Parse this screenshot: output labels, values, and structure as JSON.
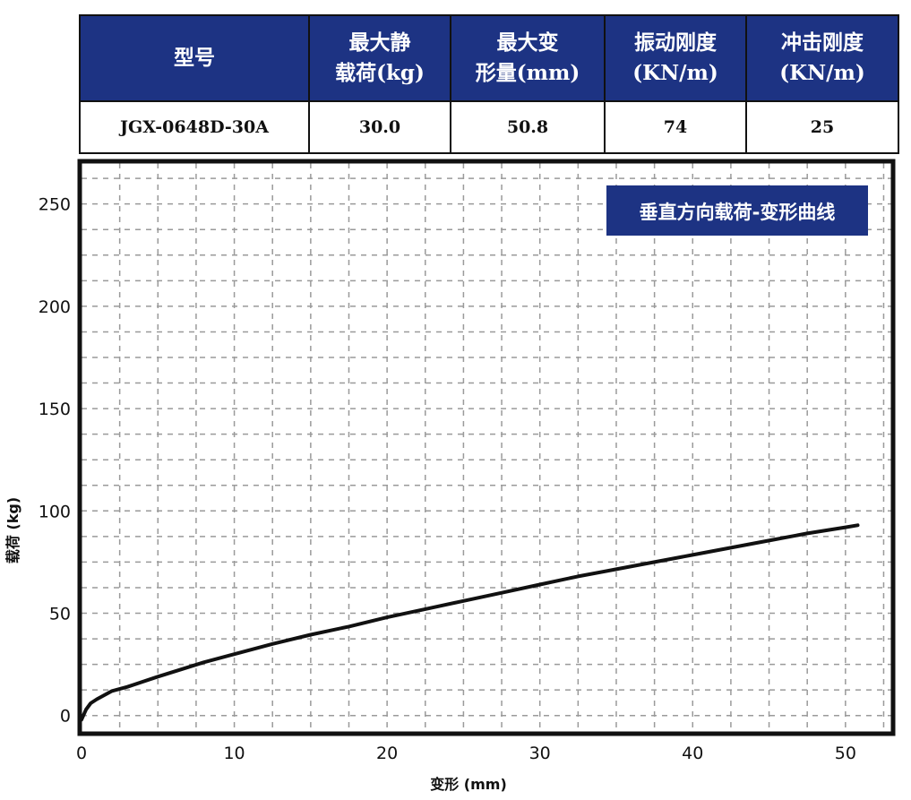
{
  "table": {
    "headers": [
      "型号",
      "最大静\n载荷(kg)",
      "最大变\n形量(mm)",
      "振动刚度\n(KN/m)",
      "冲击刚度\n(KN/m)"
    ],
    "row": [
      "JGX-0648D-30A",
      "30.0",
      "50.8",
      "74",
      "25"
    ]
  },
  "chart_data": {
    "type": "line",
    "title": "垂直方向载荷-变形曲线",
    "xlabel": "变形 (mm)",
    "ylabel": "载荷 (kg)",
    "xlim": [
      0,
      53
    ],
    "ylim": [
      -8,
      270
    ],
    "x_ticks": [
      0,
      10,
      20,
      30,
      40,
      50
    ],
    "y_ticks": [
      0,
      50,
      100,
      150,
      200,
      250
    ],
    "grid": true,
    "title_position": "top-right",
    "title_badge_color": "#1d3383",
    "line_color": "#111111",
    "series": [
      {
        "x": [
          0,
          0.3,
          0.6,
          1,
          2,
          3,
          5,
          8,
          10,
          12.5,
          15,
          17.5,
          20,
          22.5,
          25,
          27.5,
          30,
          32.5,
          35,
          37.5,
          40,
          42.5,
          45,
          47.5,
          50,
          50.8
        ],
        "y": [
          -2,
          3,
          6,
          8,
          12,
          14,
          19,
          26,
          30,
          35,
          39.5,
          43.5,
          48,
          52,
          56,
          60,
          64,
          68,
          71.5,
          75,
          78.5,
          82,
          85.5,
          89,
          92,
          93
        ]
      }
    ]
  }
}
